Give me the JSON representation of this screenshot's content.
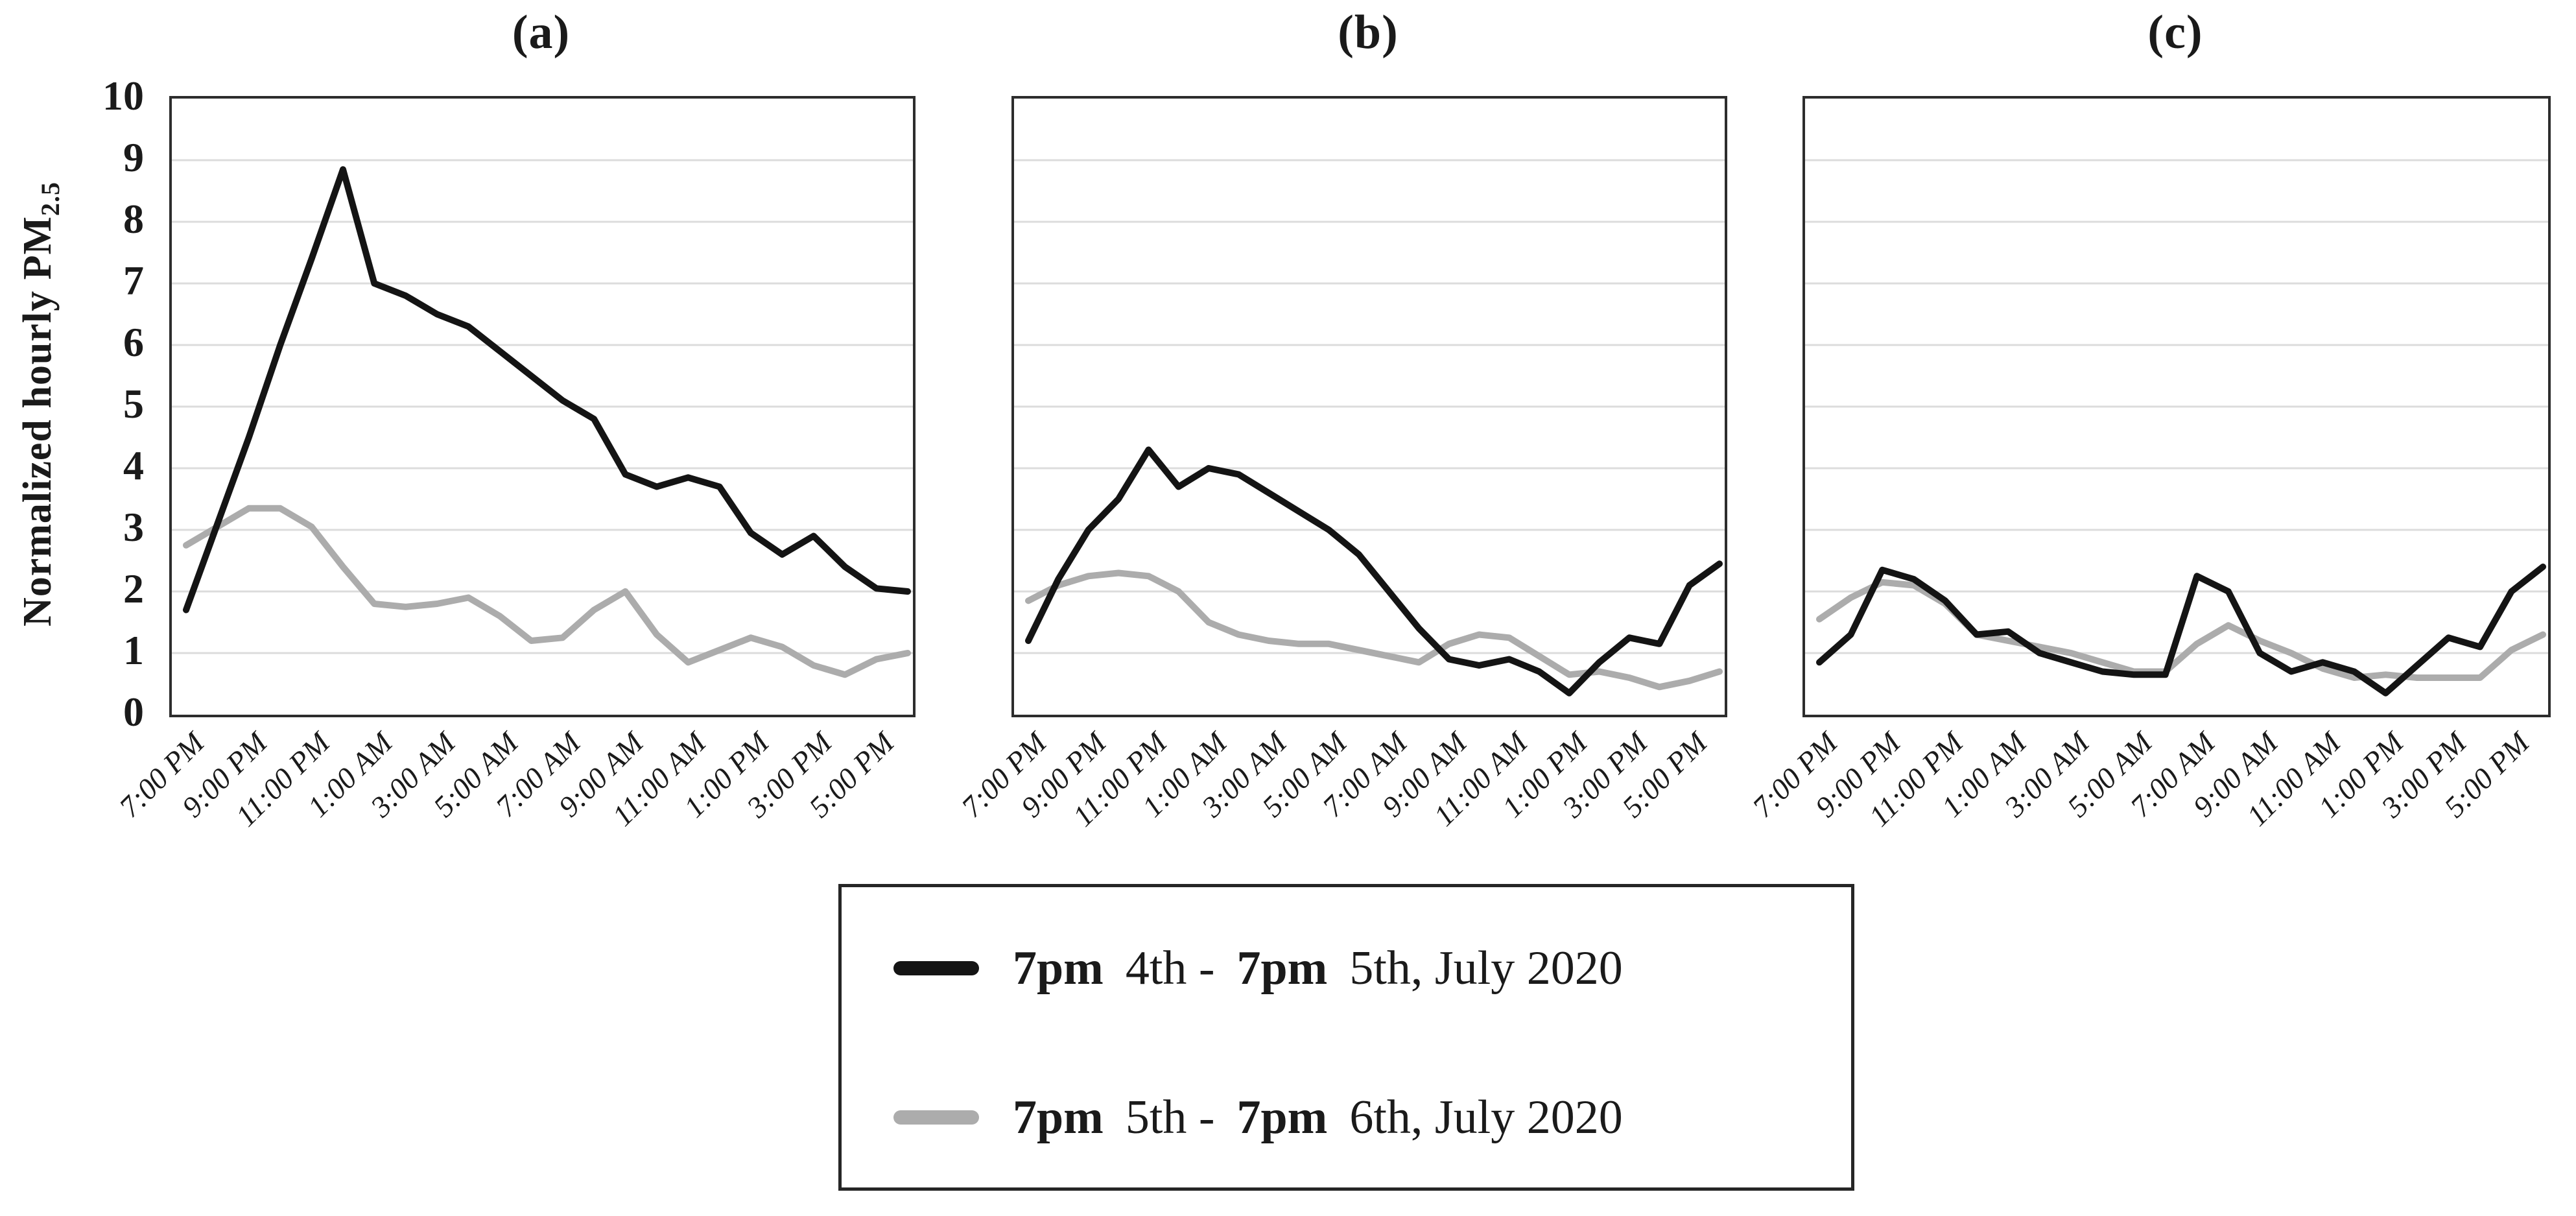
{
  "figure": {
    "y_axis_title_prefix": "Normalized hourly PM",
    "y_axis_title_subscript": "2.5",
    "y_tick_labels": [
      "10",
      "9",
      "8",
      "7",
      "6",
      "5",
      "4",
      "3",
      "2",
      "1",
      "0"
    ],
    "colors": {
      "series_black": "#141414",
      "series_gray": "#ACACAC",
      "gridline": "#DCDCDC",
      "frame": "#2d2d2d",
      "text": "#1a1a1a"
    }
  },
  "chart_data": [
    {
      "type": "line",
      "title": "(a)",
      "ylim": [
        0,
        10
      ],
      "grid": "horizontal",
      "n_points": 24,
      "points_per_tick": 2,
      "x_tick_labels": [
        "7:00 PM",
        "9:00 PM",
        "11:00 PM",
        "1:00 AM",
        "3:00 AM",
        "5:00 AM",
        "7:00 AM",
        "9:00 AM",
        "11:00 AM",
        "1:00 PM",
        "3:00 PM",
        "5:00 PM"
      ],
      "series": [
        {
          "name": "7pm 4th - 7pm 5th, July 2020",
          "color": "#141414",
          "values": [
            1.7,
            3.1,
            4.5,
            6.0,
            7.4,
            8.85,
            7.0,
            6.8,
            6.5,
            6.3,
            5.9,
            5.5,
            5.1,
            4.8,
            3.9,
            3.7,
            3.85,
            3.7,
            2.95,
            2.6,
            2.9,
            2.4,
            2.05,
            2.0
          ]
        },
        {
          "name": "7pm 5th - 7pm 6th, July 2020",
          "color": "#ACACAC",
          "values": [
            2.75,
            3.05,
            3.35,
            3.35,
            3.05,
            2.4,
            1.8,
            1.75,
            1.8,
            1.9,
            1.6,
            1.2,
            1.25,
            1.7,
            2.0,
            1.3,
            0.85,
            1.05,
            1.25,
            1.1,
            0.8,
            0.65,
            0.9,
            1.0
          ]
        }
      ]
    },
    {
      "type": "line",
      "title": "(b)",
      "ylim": [
        0,
        10
      ],
      "grid": "horizontal",
      "n_points": 24,
      "points_per_tick": 2,
      "x_tick_labels": [
        "7:00 PM",
        "9:00 PM",
        "11:00 PM",
        "1:00 AM",
        "3:00 AM",
        "5:00 AM",
        "7:00 AM",
        "9:00 AM",
        "11:00 AM",
        "1:00 PM",
        "3:00 PM",
        "5:00 PM"
      ],
      "series": [
        {
          "name": "7pm 4th - 7pm 5th, July 2020",
          "color": "#141414",
          "values": [
            1.2,
            2.2,
            3.0,
            3.5,
            4.3,
            3.7,
            4.0,
            3.9,
            3.6,
            3.3,
            3.0,
            2.6,
            2.0,
            1.4,
            0.9,
            0.8,
            0.9,
            0.7,
            0.35,
            0.85,
            1.25,
            1.15,
            2.1,
            2.45
          ]
        },
        {
          "name": "7pm 5th - 7pm 6th, July 2020",
          "color": "#ACACAC",
          "values": [
            1.85,
            2.1,
            2.25,
            2.3,
            2.25,
            2.0,
            1.5,
            1.3,
            1.2,
            1.15,
            1.15,
            1.05,
            0.95,
            0.85,
            1.15,
            1.3,
            1.25,
            0.95,
            0.65,
            0.7,
            0.6,
            0.45,
            0.55,
            0.7
          ]
        }
      ]
    },
    {
      "type": "line",
      "title": "(c)",
      "ylim": [
        0,
        10
      ],
      "grid": "horizontal",
      "n_points": 24,
      "points_per_tick": 2,
      "x_tick_labels": [
        "7:00 PM",
        "9:00 PM",
        "11:00 PM",
        "1:00 AM",
        "3:00 AM",
        "5:00 AM",
        "7:00 AM",
        "9:00 AM",
        "11:00 AM",
        "1:00 PM",
        "3:00 PM",
        "5:00 PM"
      ],
      "series": [
        {
          "name": "7pm 4th - 7pm 5th, July 2020",
          "color": "#141414",
          "values": [
            0.85,
            1.3,
            2.35,
            2.2,
            1.85,
            1.3,
            1.35,
            1.0,
            0.85,
            0.7,
            0.65,
            0.65,
            2.25,
            2.0,
            1.0,
            0.7,
            0.85,
            0.7,
            0.35,
            0.8,
            1.25,
            1.1,
            2.0,
            2.4
          ]
        },
        {
          "name": "7pm 5th - 7pm 6th, July 2020",
          "color": "#ACACAC",
          "values": [
            1.55,
            1.9,
            2.15,
            2.1,
            1.8,
            1.3,
            1.2,
            1.1,
            1.0,
            0.85,
            0.7,
            0.7,
            1.15,
            1.45,
            1.2,
            1.0,
            0.75,
            0.6,
            0.65,
            0.6,
            0.6,
            0.6,
            1.05,
            1.3
          ]
        }
      ]
    }
  ],
  "legend": {
    "rows": [
      {
        "swatch_color": "#141414",
        "parts": [
          "7pm",
          "4th -",
          "7pm",
          "5th, July 2020"
        ]
      },
      {
        "swatch_color": "#ACACAC",
        "parts": [
          "7pm",
          "5th -",
          "7pm",
          "6th, July 2020"
        ]
      }
    ]
  }
}
